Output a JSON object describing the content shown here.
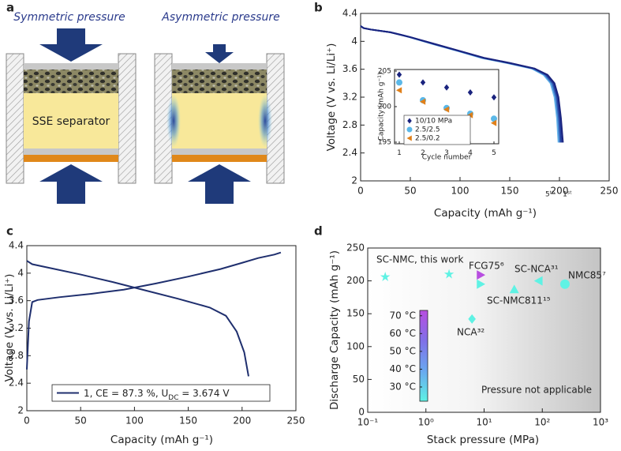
{
  "panel_labels": [
    "a",
    "b",
    "c",
    "d"
  ],
  "diagram": {
    "titles": [
      "Symmetric pressure",
      "Asymmetric pressure"
    ],
    "separator_label": "SSE separator"
  },
  "chart_data": [
    {
      "type": "line",
      "xlabel": "Capacity (mAh g⁻¹)",
      "ylabel": "Voltage (V vs. Li/Li⁺)",
      "xlim": [
        0,
        250
      ],
      "xticks": [
        0,
        50,
        100,
        150,
        200,
        250
      ],
      "ylim": [
        2,
        4.4
      ],
      "yticks": [
        2,
        2.4,
        2.8,
        3.2,
        3.6,
        4,
        4.4
      ],
      "series": [
        {
          "color": "#6bb8ec",
          "x": [
            0,
            3,
            10,
            30,
            49,
            73,
            98,
            122,
            147,
            172,
            184,
            191,
            195,
            197.5,
            199
          ],
          "values": [
            4.22,
            4.19,
            4.17,
            4.13,
            4.06,
            3.96,
            3.86,
            3.76,
            3.69,
            3.61,
            3.52,
            3.4,
            3.2,
            2.9,
            2.55
          ]
        },
        {
          "color": "#4a8fd4",
          "x": [
            0,
            3,
            10,
            30,
            50,
            74,
            99,
            123,
            148,
            173,
            185,
            192,
            196,
            198.5,
            200
          ],
          "values": [
            4.22,
            4.19,
            4.17,
            4.13,
            4.06,
            3.96,
            3.86,
            3.76,
            3.69,
            3.61,
            3.52,
            3.4,
            3.2,
            2.9,
            2.55
          ]
        },
        {
          "color": "#3461b8",
          "x": [
            0,
            3,
            10,
            30,
            50,
            74,
            99,
            124,
            149,
            174,
            186,
            193,
            197,
            199.5,
            201
          ],
          "values": [
            4.22,
            4.19,
            4.17,
            4.13,
            4.06,
            3.96,
            3.86,
            3.76,
            3.69,
            3.61,
            3.52,
            3.4,
            3.2,
            2.9,
            2.55
          ]
        },
        {
          "color": "#243c9c",
          "x": [
            0,
            3,
            10,
            30,
            50,
            75,
            100,
            125,
            150,
            175,
            187,
            194,
            198,
            200.3,
            202
          ],
          "values": [
            4.22,
            4.19,
            4.17,
            4.13,
            4.06,
            3.96,
            3.86,
            3.76,
            3.69,
            3.61,
            3.52,
            3.4,
            3.2,
            2.9,
            2.55
          ]
        },
        {
          "color": "#1a237e",
          "x": [
            0,
            3,
            10,
            30,
            50,
            75,
            100,
            125,
            150,
            175,
            188,
            195,
            199,
            201.5,
            203.5
          ],
          "values": [
            4.22,
            4.19,
            4.17,
            4.13,
            4.06,
            3.96,
            3.86,
            3.76,
            3.69,
            3.61,
            3.52,
            3.4,
            3.2,
            2.9,
            2.55
          ]
        }
      ],
      "annotations": [
        "5ᵗʰ",
        "1ˢᵗ"
      ]
    },
    {
      "type": "scatter",
      "xlabel": "Cycle number",
      "ylabel": "Capacity (mAh g⁻¹)",
      "xlim": [
        1,
        5
      ],
      "xticks": [
        1,
        2,
        3,
        4,
        5
      ],
      "ylim": [
        195,
        205
      ],
      "yticks": [
        195,
        200,
        205
      ],
      "x": [
        1,
        2,
        3,
        4,
        5
      ],
      "series": [
        {
          "name": "10/10 MPa",
          "color": "#1a237e",
          "marker": "diamond",
          "values": [
            204.5,
            203.4,
            202.7,
            202,
            201.3
          ]
        },
        {
          "name": "2.5/2.5",
          "color": "#5bb8e8",
          "marker": "circle",
          "values": [
            203.4,
            200.9,
            199.8,
            199,
            198.3
          ]
        },
        {
          "name": "2.5/0.2",
          "color": "#e0801a",
          "marker": "triangle-left",
          "values": [
            202.3,
            200.7,
            199.6,
            198.8,
            197.7
          ]
        }
      ],
      "legend": "lower-left"
    },
    {
      "type": "line",
      "xlabel": "Capacity (mAh g⁻¹)",
      "ylabel": "Voltage (V vs. Li/Li⁺)",
      "xlim": [
        0,
        250
      ],
      "xticks": [
        0,
        50,
        100,
        150,
        200,
        250
      ],
      "ylim": [
        2,
        4.4
      ],
      "yticks": [
        2,
        2.4,
        2.8,
        3.2,
        3.6,
        4,
        4.4
      ],
      "series": [
        {
          "color": "#1f2f6e",
          "x": [
            0,
            2,
            5,
            10,
            30,
            60,
            90,
            120,
            150,
            180,
            200,
            215,
            230,
            236
          ],
          "values": [
            2.6,
            3.3,
            3.58,
            3.61,
            3.65,
            3.7,
            3.76,
            3.85,
            3.95,
            4.06,
            4.15,
            4.22,
            4.27,
            4.3
          ]
        },
        {
          "color": "#1f2f6e",
          "x": [
            0,
            5,
            20,
            50,
            80,
            110,
            140,
            170,
            185,
            195,
            202,
            206
          ],
          "values": [
            4.18,
            4.13,
            4.08,
            3.98,
            3.87,
            3.75,
            3.63,
            3.5,
            3.38,
            3.15,
            2.85,
            2.5
          ]
        }
      ],
      "legend_label": {
        "text": "1, CE = 87.3 %, U",
        "subscript": "DC",
        "suffix": " = 3.674 V"
      },
      "legend": "lower-center"
    },
    {
      "type": "scatter",
      "xlabel": "Stack pressure (MPa)",
      "ylabel": "Discharge Capacity (mAh g⁻¹)",
      "xscale": "log",
      "xlim": [
        0.1,
        1000
      ],
      "xticks": [
        {
          "value": 0.1,
          "label": "10⁻¹"
        },
        {
          "value": 1,
          "label": "10⁰"
        },
        {
          "value": 10,
          "label": "10¹"
        },
        {
          "value": 100,
          "label": "10²"
        },
        {
          "value": 1000,
          "label": "10³"
        }
      ],
      "ylim": [
        0,
        250
      ],
      "yticks": [
        0,
        50,
        100,
        150,
        200,
        250
      ],
      "points": [
        {
          "label": "SC-NMC, this work",
          "x": 0.2,
          "y": 206,
          "marker": "star",
          "color": "#5ff2e4"
        },
        {
          "label": null,
          "x": 2.5,
          "y": 210,
          "marker": "star",
          "color": "#5ff2e4"
        },
        {
          "label": "FCG75⁶",
          "x": 8.7,
          "y": 209,
          "marker": "triangle-right",
          "color": "#b84ee0"
        },
        {
          "label": null,
          "x": 8.7,
          "y": 195,
          "marker": "triangle-right",
          "color": "#5ff2e4"
        },
        {
          "label": "SC-NMC811¹⁵",
          "x": 33,
          "y": 187,
          "marker": "triangle-up",
          "color": "#5ff2e4"
        },
        {
          "label": "SC-NCA³¹",
          "x": 87,
          "y": 200,
          "marker": "triangle-left",
          "color": "#5ff2e4"
        },
        {
          "label": "NMC85⁷",
          "x": 245,
          "y": 195,
          "marker": "circle",
          "color": "#5ff2e4"
        },
        {
          "label": "NCA³²",
          "x": 6.2,
          "y": 142,
          "marker": "diamond",
          "color": "#5ff2e4"
        }
      ],
      "colorbar": {
        "lim": [
          22,
          73
        ],
        "ticks": [
          {
            "value": 30,
            "label": "30 °C"
          },
          {
            "value": 40,
            "label": "40 °C"
          },
          {
            "value": 50,
            "label": "50 °C"
          },
          {
            "value": 60,
            "label": "60 °C"
          },
          {
            "value": 70,
            "label": "70 °C"
          }
        ],
        "colors": [
          "#5ff2e4",
          "#6aa8f0",
          "#8070e8",
          "#b84ee0"
        ]
      },
      "note": "Pressure not applicable"
    }
  ]
}
